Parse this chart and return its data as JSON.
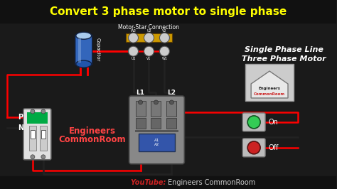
{
  "title": "Convert 3 phase motor to single phase",
  "title_color": "#ffff00",
  "title_bg": "#111111",
  "bg_color": "#1a1a1a",
  "footer_bg": "#111111",
  "footer_youtube": "YouTube: ",
  "footer_channel": "Engineers CommonRoom",
  "footer_youtube_color": "#cc2222",
  "footer_channel_color": "#cccccc",
  "watermark_line1": "Engineers",
  "watermark_line2": "CommonRoom",
  "watermark_color": "#ff4444",
  "right_text_line1": "Single Phase Line",
  "right_text_line2": "Three Phase Motor",
  "right_text_color": "#ffffff",
  "motor_label": "Motor-Star Connection",
  "capacitor_label": "Capacitor",
  "on_label": "On",
  "off_label": "Off",
  "wire_red": "#ff0000",
  "wire_black": "#222222",
  "cap_body_color": "#3366bb",
  "cap_top_color": "#aaccee",
  "breaker_green": "#00aa44",
  "contactor_gray": "#888888",
  "contactor_blue": "#3355aa",
  "btn_green": "#33cc55",
  "btn_red": "#cc2222",
  "star_bar_color": "#cc9900",
  "terminal_color": "#aaaaaa",
  "logo_outline": "#aaaaaa",
  "title_fontsize": 11,
  "footer_fontsize": 7
}
